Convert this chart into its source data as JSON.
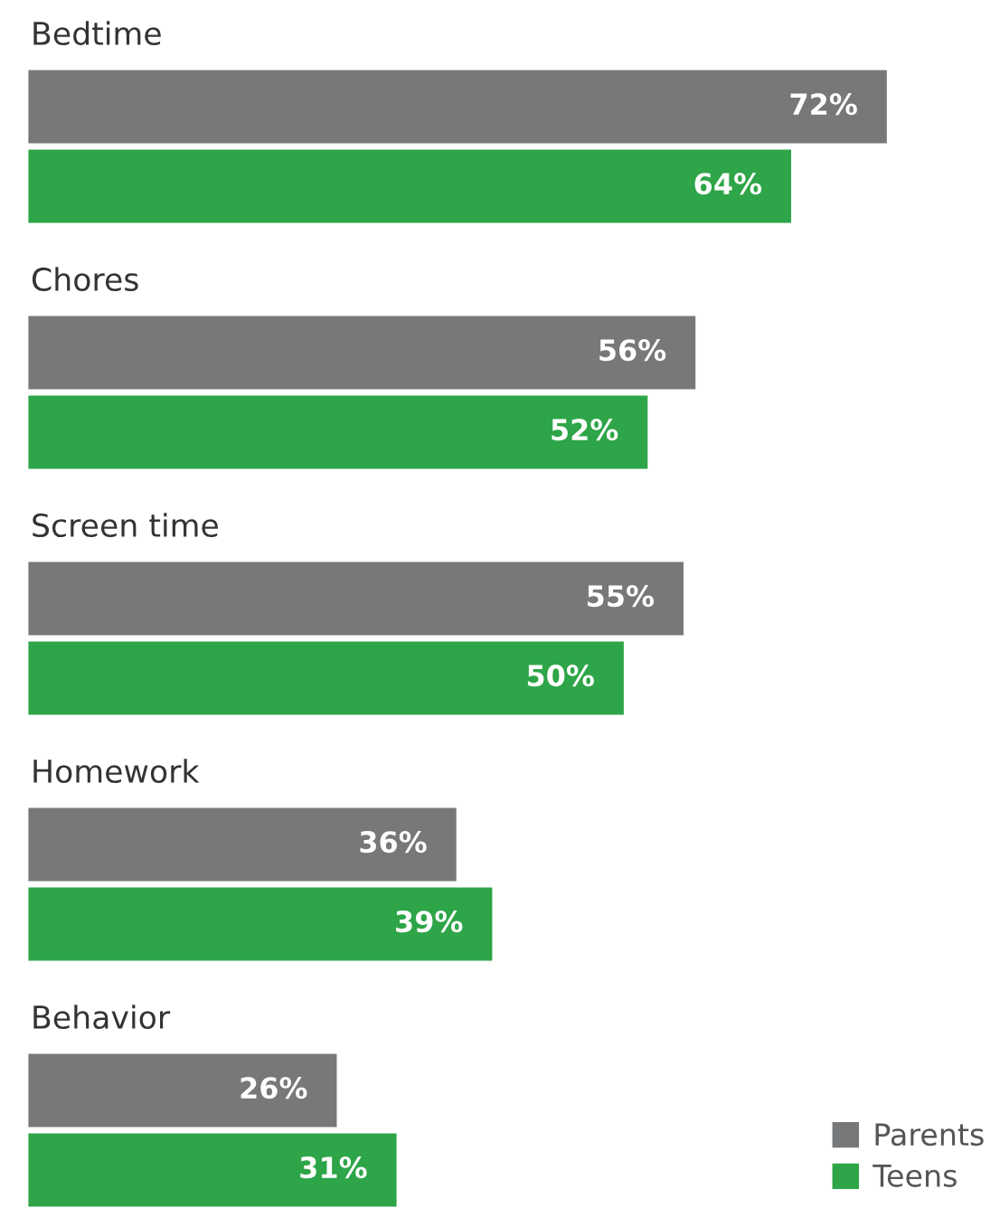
{
  "chart_data": {
    "type": "bar",
    "orientation": "horizontal",
    "categories": [
      "Bedtime",
      "Chores",
      "Screen time",
      "Homework",
      "Behavior"
    ],
    "series": [
      {
        "name": "Parents",
        "color": "#76787a",
        "values": [
          72,
          56,
          55,
          36,
          26
        ],
        "value_labels": [
          "72%",
          "56%",
          "55%",
          "36%",
          "26%"
        ]
      },
      {
        "name": "Teens",
        "color": "#2ea548",
        "values": [
          64,
          52,
          50,
          39,
          31
        ],
        "value_labels": [
          "64%",
          "52%",
          "50%",
          "39%",
          "31%"
        ]
      }
    ],
    "legend": "bottom right"
  }
}
